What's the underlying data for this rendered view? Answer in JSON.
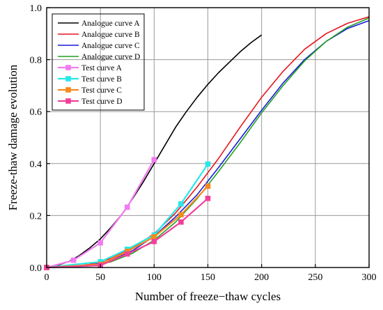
{
  "chart_data": {
    "type": "line",
    "title": "",
    "xlabel": "Number of freeze−thaw cycles",
    "ylabel": "Freeze-thaw damage evolution",
    "xlim": [
      0,
      300
    ],
    "ylim": [
      0,
      1.0
    ],
    "xticks": [
      "0",
      "50",
      "100",
      "150",
      "200",
      "250",
      "300"
    ],
    "yticks": [
      "0.0",
      "0.2",
      "0.4",
      "0.6",
      "0.8",
      "1.0"
    ],
    "grid": true,
    "legend_position": "top-left",
    "series": [
      {
        "name": "Analogue curve  A",
        "kind": "line",
        "color": "#000000",
        "x": [
          0,
          10,
          20,
          30,
          40,
          50,
          60,
          70,
          80,
          90,
          100,
          110,
          120,
          130,
          140,
          150,
          160,
          170,
          180,
          190,
          200
        ],
        "y": [
          0.0,
          0.008,
          0.022,
          0.045,
          0.075,
          0.11,
          0.155,
          0.205,
          0.265,
          0.33,
          0.4,
          0.47,
          0.54,
          0.6,
          0.655,
          0.705,
          0.75,
          0.79,
          0.83,
          0.865,
          0.895
        ]
      },
      {
        "name": "Analogue curve  B",
        "kind": "line",
        "color": "#e8141e",
        "x": [
          0,
          20,
          40,
          60,
          80,
          100,
          120,
          140,
          160,
          180,
          200,
          220,
          240,
          260,
          280,
          300
        ],
        "y": [
          0.0,
          0.002,
          0.012,
          0.035,
          0.075,
          0.13,
          0.21,
          0.31,
          0.42,
          0.54,
          0.655,
          0.755,
          0.84,
          0.9,
          0.94,
          0.965
        ]
      },
      {
        "name": "Analogue curve  C",
        "kind": "line",
        "color": "#1a1adc",
        "x": [
          0,
          20,
          40,
          60,
          80,
          100,
          120,
          140,
          160,
          180,
          200,
          220,
          240,
          260,
          280,
          300
        ],
        "y": [
          0.0,
          0.001,
          0.008,
          0.028,
          0.065,
          0.12,
          0.195,
          0.28,
          0.385,
          0.495,
          0.605,
          0.71,
          0.8,
          0.87,
          0.92,
          0.95
        ]
      },
      {
        "name": "Analogue curve  D",
        "kind": "line",
        "color": "#20a020",
        "x": [
          0,
          20,
          40,
          60,
          80,
          100,
          120,
          140,
          160,
          180,
          200,
          220,
          240,
          260,
          280,
          300
        ],
        "y": [
          0.0,
          0.001,
          0.006,
          0.022,
          0.055,
          0.105,
          0.175,
          0.265,
          0.37,
          0.48,
          0.595,
          0.7,
          0.795,
          0.87,
          0.925,
          0.96
        ]
      },
      {
        "name": "Test curve A",
        "kind": "marker-line",
        "color": "#f07cf0",
        "x": [
          0,
          25,
          50,
          75,
          100
        ],
        "y": [
          0.0,
          0.028,
          0.095,
          0.232,
          0.415
        ]
      },
      {
        "name": "Test curve B",
        "kind": "marker-line",
        "color": "#26e8e8",
        "x": [
          0,
          50,
          75,
          100,
          125,
          150
        ],
        "y": [
          0.0,
          0.022,
          0.07,
          0.125,
          0.245,
          0.398
        ]
      },
      {
        "name": "Test curve C",
        "kind": "marker-line",
        "color": "#f58a1e",
        "x": [
          0,
          50,
          75,
          100,
          125,
          150
        ],
        "y": [
          0.0,
          0.012,
          0.062,
          0.118,
          0.203,
          0.313
        ]
      },
      {
        "name": "Test curve D",
        "kind": "marker-line",
        "color": "#f0409a",
        "x": [
          0,
          50,
          75,
          100,
          125,
          150
        ],
        "y": [
          0.0,
          0.008,
          0.052,
          0.1,
          0.175,
          0.266
        ]
      }
    ]
  }
}
